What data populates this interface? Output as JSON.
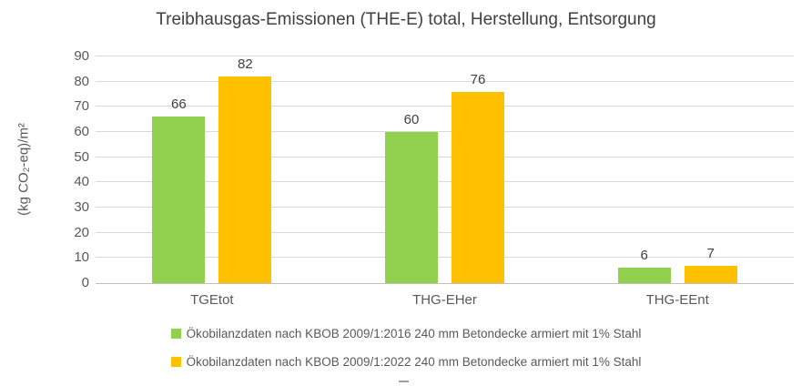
{
  "chart_data": {
    "type": "bar",
    "title": "Treibhausgas-Emissionen (THE-E) total, Herstellung, Entsorgung",
    "xlabel": "",
    "ylabel": "(kg CO₂-eq)/m²",
    "ylim": [
      0,
      90
    ],
    "yticks": [
      0,
      10,
      20,
      30,
      40,
      50,
      60,
      70,
      80,
      90
    ],
    "grid": true,
    "legend_position": "bottom",
    "categories": [
      "TGEtot",
      "THG-EHer",
      "THG-EEnt"
    ],
    "series": [
      {
        "name": "Ökobilanzdaten nach KBOB 2009/1:2016 240 mm Betondecke armiert mit 1% Stahl",
        "color": "#92D050",
        "values": [
          66,
          60,
          6
        ]
      },
      {
        "name": "Ökobilanzdaten nach KBOB 2009/1:2022 240 mm Betondecke armiert mit 1% Stahl",
        "color": "#FFC000",
        "values": [
          82,
          76,
          7
        ]
      }
    ]
  },
  "colors": {
    "title_text": "#404040",
    "axis_text": "#595959",
    "data_label_text": "#404040",
    "gridline": "#D9D9D9",
    "axis_line": "#BFBFBF",
    "background": "#FFFFFF"
  }
}
